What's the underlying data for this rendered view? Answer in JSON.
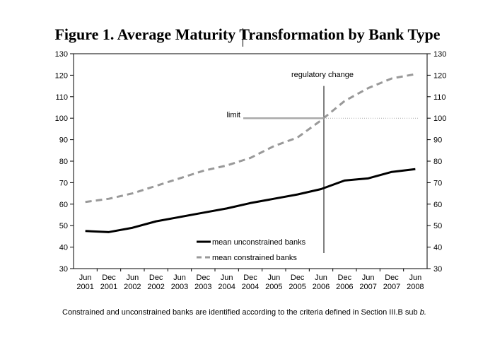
{
  "figure": {
    "title": "Figure 1. Average Maturity Transformation by Bank Type",
    "note_text": "Constrained and unconstrained banks are identified according to the criteria defined in Section III.B sub ",
    "note_italic": "b."
  },
  "chart_data": {
    "type": "line",
    "categories": [
      [
        "Jun",
        "2001"
      ],
      [
        "Dec",
        "2001"
      ],
      [
        "Jun",
        "2002"
      ],
      [
        "Dec",
        "2002"
      ],
      [
        "Jun",
        "2003"
      ],
      [
        "Dec",
        "2003"
      ],
      [
        "Jun",
        "2004"
      ],
      [
        "Dec",
        "2004"
      ],
      [
        "Jun",
        "2005"
      ],
      [
        "Dec",
        "2005"
      ],
      [
        "Jun",
        "2006"
      ],
      [
        "Dec",
        "2006"
      ],
      [
        "Jun",
        "2007"
      ],
      [
        "Dec",
        "2007"
      ],
      [
        "Jun",
        "2008"
      ]
    ],
    "ylim": [
      30,
      130
    ],
    "yticks": [
      30,
      40,
      50,
      60,
      70,
      80,
      90,
      100,
      110,
      120,
      130
    ],
    "series": [
      {
        "name": "mean unconstrained banks",
        "style": "solid",
        "color": "#000000",
        "values": [
          47.5,
          47,
          49,
          52,
          54,
          56,
          58,
          60.5,
          62.5,
          64.5,
          67,
          71,
          72,
          75,
          76.3
        ]
      },
      {
        "name": "mean constrained banks",
        "style": "dashed",
        "color": "#999999",
        "values": [
          61,
          62.5,
          65,
          68.5,
          72,
          75.5,
          78,
          81.5,
          87,
          91,
          99,
          108,
          114,
          118.5,
          120.5
        ]
      }
    ],
    "annotations": {
      "regulatory_change": {
        "label": "regulatory change",
        "at_index": 10
      },
      "limit": {
        "label": "limit",
        "value": 100
      }
    },
    "legend": "bottom-center"
  }
}
